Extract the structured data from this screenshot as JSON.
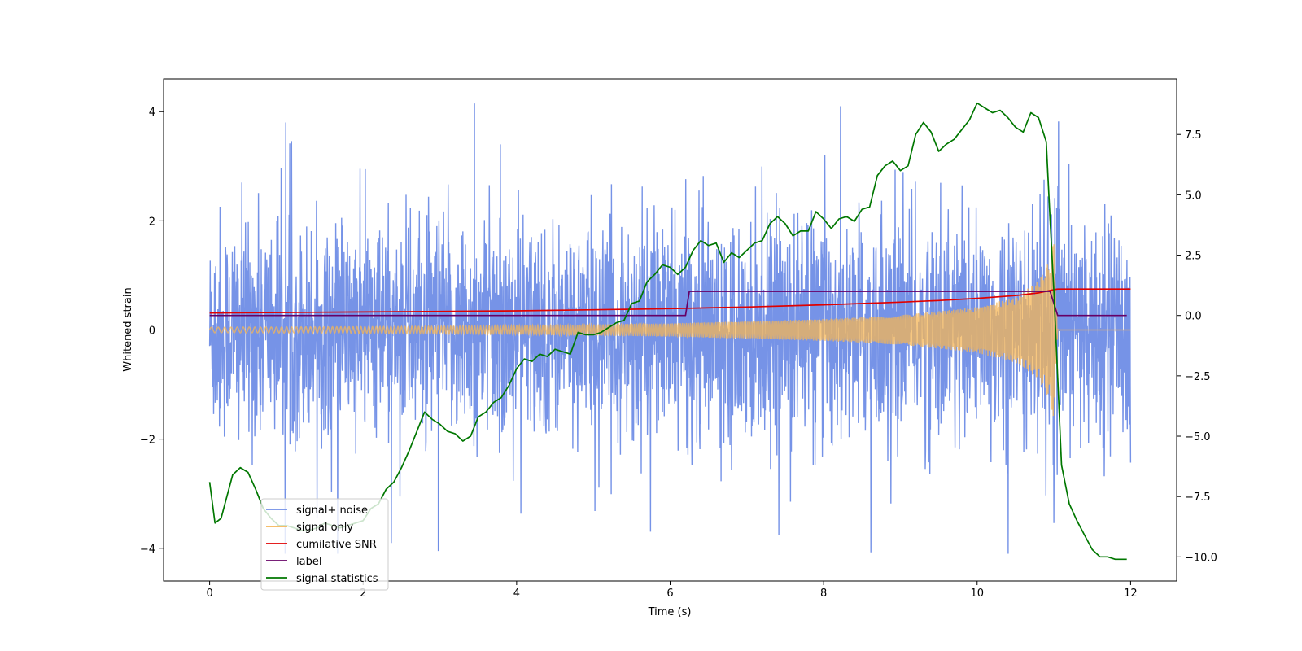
{
  "chart_data": {
    "type": "line",
    "title": "",
    "xlabel": "Time (s)",
    "ylabel": "Whitened strain",
    "ylabel_right": "",
    "xlim": [
      -0.6,
      12.6
    ],
    "ylim": [
      -4.6,
      4.6
    ],
    "ylim_right": [
      -11.0,
      9.8
    ],
    "x_ticks": [
      0,
      2,
      4,
      6,
      8,
      10,
      12
    ],
    "x_tick_labels": [
      "0",
      "2",
      "4",
      "6",
      "8",
      "10",
      "12"
    ],
    "y_ticks": [
      -4,
      -2,
      0,
      2,
      4
    ],
    "y_tick_labels": [
      "−4",
      "−2",
      "0",
      "2",
      "4"
    ],
    "y_right_ticks": [
      -10.0,
      -7.5,
      -5.0,
      -2.5,
      0.0,
      2.5,
      5.0,
      7.5
    ],
    "y_right_tick_labels": [
      "−10.0",
      "−7.5",
      "−5.0",
      "−2.5",
      "0.0",
      "2.5",
      "5.0",
      "7.5"
    ],
    "grid": false,
    "legend_position": "lower-left",
    "series": [
      {
        "name": "signal+ noise",
        "axis": "left",
        "color": "#6f8de6",
        "description_envelope": {
          "x_range": [
            0,
            12
          ],
          "typical_amplitude": 1.6,
          "max_peaks": [
            4.15,
            -4.05
          ]
        }
      },
      {
        "name": "signal only",
        "axis": "left",
        "color": "#f5b555",
        "envelope": {
          "x": [
            0,
            2,
            4,
            6,
            8,
            9,
            10,
            10.5,
            10.8,
            10.95,
            11.0,
            11.05,
            12
          ],
          "amplitude": [
            0.05,
            0.06,
            0.08,
            0.12,
            0.2,
            0.27,
            0.42,
            0.6,
            0.9,
            1.3,
            1.65,
            0.0,
            0.0
          ]
        }
      },
      {
        "name": "cumilative SNR",
        "axis": "left",
        "color": "#e00000",
        "x": [
          0,
          1,
          2,
          3,
          4,
          5,
          6,
          7,
          8,
          9,
          9.5,
          10,
          10.5,
          10.8,
          11.0,
          11.05,
          12
        ],
        "values": [
          0.31,
          0.32,
          0.33,
          0.34,
          0.35,
          0.37,
          0.39,
          0.42,
          0.46,
          0.51,
          0.54,
          0.58,
          0.63,
          0.68,
          0.74,
          0.75,
          0.75
        ]
      },
      {
        "name": "label",
        "axis": "right",
        "color": "#660066",
        "x": [
          0,
          6.2,
          6.25,
          10.95,
          11.05,
          11.95
        ],
        "values": [
          0.0,
          0.0,
          1.0,
          1.0,
          0.0,
          0.0
        ]
      },
      {
        "name": "signal statistics",
        "axis": "right",
        "color": "#007700",
        "x": [
          0.0,
          0.07,
          0.15,
          0.3,
          0.4,
          0.5,
          0.6,
          0.7,
          0.8,
          0.9,
          1.0,
          1.1,
          1.2,
          1.3,
          1.4,
          1.5,
          1.6,
          1.7,
          1.8,
          1.9,
          2.0,
          2.1,
          2.2,
          2.3,
          2.4,
          2.5,
          2.6,
          2.7,
          2.8,
          2.9,
          3.0,
          3.1,
          3.2,
          3.3,
          3.4,
          3.5,
          3.6,
          3.7,
          3.8,
          3.9,
          4.0,
          4.1,
          4.2,
          4.3,
          4.4,
          4.5,
          4.6,
          4.7,
          4.8,
          4.9,
          5.0,
          5.1,
          5.2,
          5.3,
          5.4,
          5.5,
          5.6,
          5.7,
          5.8,
          5.9,
          6.0,
          6.1,
          6.2,
          6.3,
          6.4,
          6.5,
          6.6,
          6.7,
          6.8,
          6.9,
          7.0,
          7.1,
          7.2,
          7.3,
          7.4,
          7.5,
          7.6,
          7.7,
          7.8,
          7.9,
          8.0,
          8.1,
          8.2,
          8.3,
          8.4,
          8.5,
          8.6,
          8.7,
          8.8,
          8.9,
          9.0,
          9.1,
          9.2,
          9.3,
          9.4,
          9.5,
          9.6,
          9.7,
          9.8,
          9.9,
          10.0,
          10.1,
          10.2,
          10.3,
          10.4,
          10.5,
          10.6,
          10.7,
          10.8,
          10.9,
          10.95,
          11.0,
          11.1,
          11.2,
          11.3,
          11.4,
          11.5,
          11.6,
          11.7,
          11.8,
          11.95
        ],
        "values": [
          -6.9,
          -8.6,
          -8.4,
          -6.6,
          -6.3,
          -6.5,
          -7.2,
          -8.0,
          -8.4,
          -8.7,
          -8.7,
          -8.8,
          -8.9,
          -8.9,
          -8.8,
          -8.6,
          -8.7,
          -8.8,
          -8.7,
          -8.6,
          -8.5,
          -8.0,
          -7.8,
          -7.2,
          -6.9,
          -6.3,
          -5.6,
          -4.8,
          -4.0,
          -4.3,
          -4.5,
          -4.8,
          -4.9,
          -5.2,
          -5.0,
          -4.2,
          -4.0,
          -3.6,
          -3.4,
          -2.9,
          -2.2,
          -1.8,
          -1.9,
          -1.6,
          -1.7,
          -1.4,
          -1.5,
          -1.6,
          -0.7,
          -0.8,
          -0.8,
          -0.7,
          -0.5,
          -0.3,
          -0.2,
          0.5,
          0.6,
          1.4,
          1.7,
          2.1,
          2.0,
          1.7,
          2.0,
          2.7,
          3.1,
          2.9,
          3.0,
          2.2,
          2.6,
          2.4,
          2.7,
          3.0,
          3.1,
          3.8,
          4.1,
          3.8,
          3.3,
          3.5,
          3.5,
          4.3,
          4.0,
          3.6,
          4.0,
          4.1,
          3.9,
          4.4,
          4.5,
          5.8,
          6.2,
          6.4,
          6.0,
          6.2,
          7.5,
          8.0,
          7.6,
          6.8,
          7.1,
          7.3,
          7.7,
          8.1,
          8.8,
          8.6,
          8.4,
          8.5,
          8.2,
          7.8,
          7.6,
          8.4,
          8.2,
          7.2,
          4.0,
          1.0,
          -6.2,
          -7.8,
          -8.5,
          -9.1,
          -9.7,
          -10.0,
          -10.0,
          -10.1,
          -10.1
        ]
      }
    ]
  }
}
